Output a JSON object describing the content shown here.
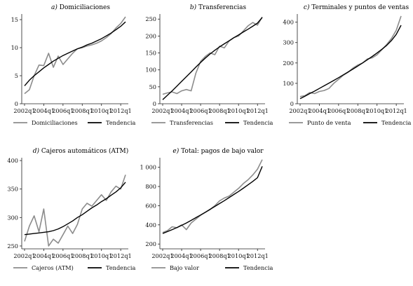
{
  "chart_data": [
    {
      "type": "line",
      "letter": "a)",
      "title": "Domiciliaciones",
      "x": [
        "2002q1",
        "2002q3",
        "2003q1",
        "2003q3",
        "2004q1",
        "2004q3",
        "2005q1",
        "2005q3",
        "2006q1",
        "2006q3",
        "2007q1",
        "2007q3",
        "2008q1",
        "2008q3",
        "2009q1",
        "2009q3",
        "2010q1",
        "2010q3",
        "2011q1",
        "2011q3",
        "2012q1",
        "2012q3"
      ],
      "xticks": [
        "2002q1",
        "2004q1",
        "2006q1",
        "2008q1",
        "2010q1",
        "2012q1"
      ],
      "ylim": [
        0,
        16
      ],
      "yticks": [
        0,
        5,
        10,
        15
      ],
      "series": [
        {
          "name": "Domiciliaciones",
          "color": "#8c8c8c",
          "values": [
            1.8,
            2.5,
            5.0,
            6.9,
            6.8,
            9.0,
            6.5,
            8.5,
            7.0,
            8.0,
            9.0,
            9.8,
            10.0,
            10.3,
            10.5,
            10.8,
            11.2,
            11.8,
            12.5,
            13.5,
            14.3,
            15.5
          ]
        },
        {
          "name": "Tendencia",
          "color": "#000000",
          "values": [
            3.2,
            4.2,
            5.0,
            5.7,
            6.4,
            7.0,
            7.6,
            8.1,
            8.6,
            9.0,
            9.4,
            9.8,
            10.1,
            10.5,
            10.8,
            11.2,
            11.6,
            12.1,
            12.6,
            13.2,
            13.8,
            14.6
          ]
        }
      ]
    },
    {
      "type": "line",
      "letter": "b)",
      "title": "Transferencias",
      "x": [
        "2002q1",
        "2002q3",
        "2003q1",
        "2003q3",
        "2004q1",
        "2004q3",
        "2005q1",
        "2005q3",
        "2006q1",
        "2006q3",
        "2007q1",
        "2007q3",
        "2008q1",
        "2008q3",
        "2009q1",
        "2009q3",
        "2010q1",
        "2010q3",
        "2011q1",
        "2011q3",
        "2012q1",
        "2012q3"
      ],
      "xticks": [
        "2002q1",
        "2004q1",
        "2006q1",
        "2008q1",
        "2010q1",
        "2012q1"
      ],
      "ylim": [
        0,
        265
      ],
      "yticks": [
        0,
        50,
        100,
        150,
        200,
        250
      ],
      "series": [
        {
          "name": "Transferencias",
          "color": "#8c8c8c",
          "values": [
            28,
            32,
            35,
            30,
            38,
            42,
            38,
            90,
            125,
            140,
            150,
            145,
            170,
            165,
            185,
            195,
            200,
            215,
            230,
            240,
            232,
            256
          ]
        },
        {
          "name": "Tendencia",
          "color": "#000000",
          "values": [
            12,
            25,
            38,
            52,
            66,
            80,
            94,
            108,
            122,
            135,
            147,
            158,
            168,
            177,
            186,
            195,
            203,
            212,
            220,
            229,
            238,
            255
          ]
        }
      ]
    },
    {
      "type": "line",
      "letter": "c)",
      "title": "Terminales y puntos de ventas",
      "x": [
        "2002q1",
        "2002q3",
        "2003q1",
        "2003q3",
        "2004q1",
        "2004q3",
        "2005q1",
        "2005q3",
        "2006q1",
        "2006q3",
        "2007q1",
        "2007q3",
        "2008q1",
        "2008q3",
        "2009q1",
        "2009q3",
        "2010q1",
        "2010q3",
        "2011q1",
        "2011q3",
        "2012q1",
        "2012q3"
      ],
      "xticks": [
        "2002q1",
        "2004q1",
        "2006q1",
        "2008q1",
        "2010q1",
        "2012q1"
      ],
      "ylim": [
        0,
        440
      ],
      "yticks": [
        0,
        100,
        200,
        300,
        400
      ],
      "series": [
        {
          "name": "Punto de venta",
          "color": "#8c8c8c",
          "values": [
            35,
            40,
            55,
            50,
            60,
            65,
            75,
            100,
            120,
            140,
            155,
            175,
            190,
            200,
            220,
            225,
            240,
            265,
            290,
            320,
            360,
            430
          ]
        },
        {
          "name": "Tendencia",
          "color": "#000000",
          "values": [
            25,
            37,
            50,
            62,
            75,
            88,
            101,
            114,
            128,
            142,
            156,
            170,
            185,
            200,
            216,
            232,
            249,
            267,
            286,
            310,
            340,
            385
          ]
        }
      ]
    },
    {
      "type": "line",
      "letter": "d)",
      "title": "Cajeros automáticos (ATM)",
      "x": [
        "2002q1",
        "2002q3",
        "2003q1",
        "2003q3",
        "2004q1",
        "2004q3",
        "2005q1",
        "2005q3",
        "2006q1",
        "2006q3",
        "2007q1",
        "2007q3",
        "2008q1",
        "2008q3",
        "2009q1",
        "2009q3",
        "2010q1",
        "2010q3",
        "2011q1",
        "2011q3",
        "2012q1",
        "2012q3"
      ],
      "xticks": [
        "2002q1",
        "2004q1",
        "2006q1",
        "2008q1",
        "2010q1",
        "2012q1"
      ],
      "ylim": [
        245,
        405
      ],
      "yticks": [
        250,
        300,
        350,
        400
      ],
      "series": [
        {
          "name": "Cajeros (ATM)",
          "color": "#8c8c8c",
          "values": [
            258,
            285,
            303,
            275,
            315,
            250,
            262,
            255,
            270,
            285,
            272,
            288,
            315,
            325,
            320,
            330,
            340,
            330,
            345,
            355,
            350,
            375
          ]
        },
        {
          "name": "Tendencia",
          "color": "#000000",
          "values": [
            270,
            271,
            272,
            273,
            274,
            275,
            277,
            280,
            284,
            289,
            294,
            300,
            305,
            311,
            317,
            322,
            328,
            333,
            339,
            345,
            352,
            362
          ]
        }
      ]
    },
    {
      "type": "line",
      "letter": "e)",
      "title": "Total: pagos de bajo valor",
      "x": [
        "2002q1",
        "2002q3",
        "2003q1",
        "2003q3",
        "2004q1",
        "2004q3",
        "2005q1",
        "2005q3",
        "2006q1",
        "2006q3",
        "2007q1",
        "2007q3",
        "2008q1",
        "2008q3",
        "2009q1",
        "2009q3",
        "2010q1",
        "2010q3",
        "2011q1",
        "2011q3",
        "2012q1",
        "2012q3"
      ],
      "xticks": [
        "2002q1",
        "2004q1",
        "2006q1",
        "2008q1",
        "2010q1",
        "2012q1"
      ],
      "ylim": [
        150,
        1100
      ],
      "yticks": [
        200,
        400,
        600,
        800,
        "1 000"
      ],
      "series": [
        {
          "name": "Bajo valor",
          "color": "#8c8c8c",
          "values": [
            320,
            340,
            380,
            370,
            400,
            350,
            420,
            460,
            500,
            530,
            560,
            600,
            650,
            680,
            700,
            740,
            780,
            830,
            870,
            920,
            980,
            1080
          ]
        },
        {
          "name": "Tendencia",
          "color": "#000000",
          "values": [
            310,
            330,
            350,
            372,
            395,
            420,
            447,
            475,
            503,
            532,
            562,
            592,
            622,
            652,
            684,
            716,
            748,
            782,
            817,
            853,
            892,
            1010
          ]
        }
      ]
    }
  ]
}
